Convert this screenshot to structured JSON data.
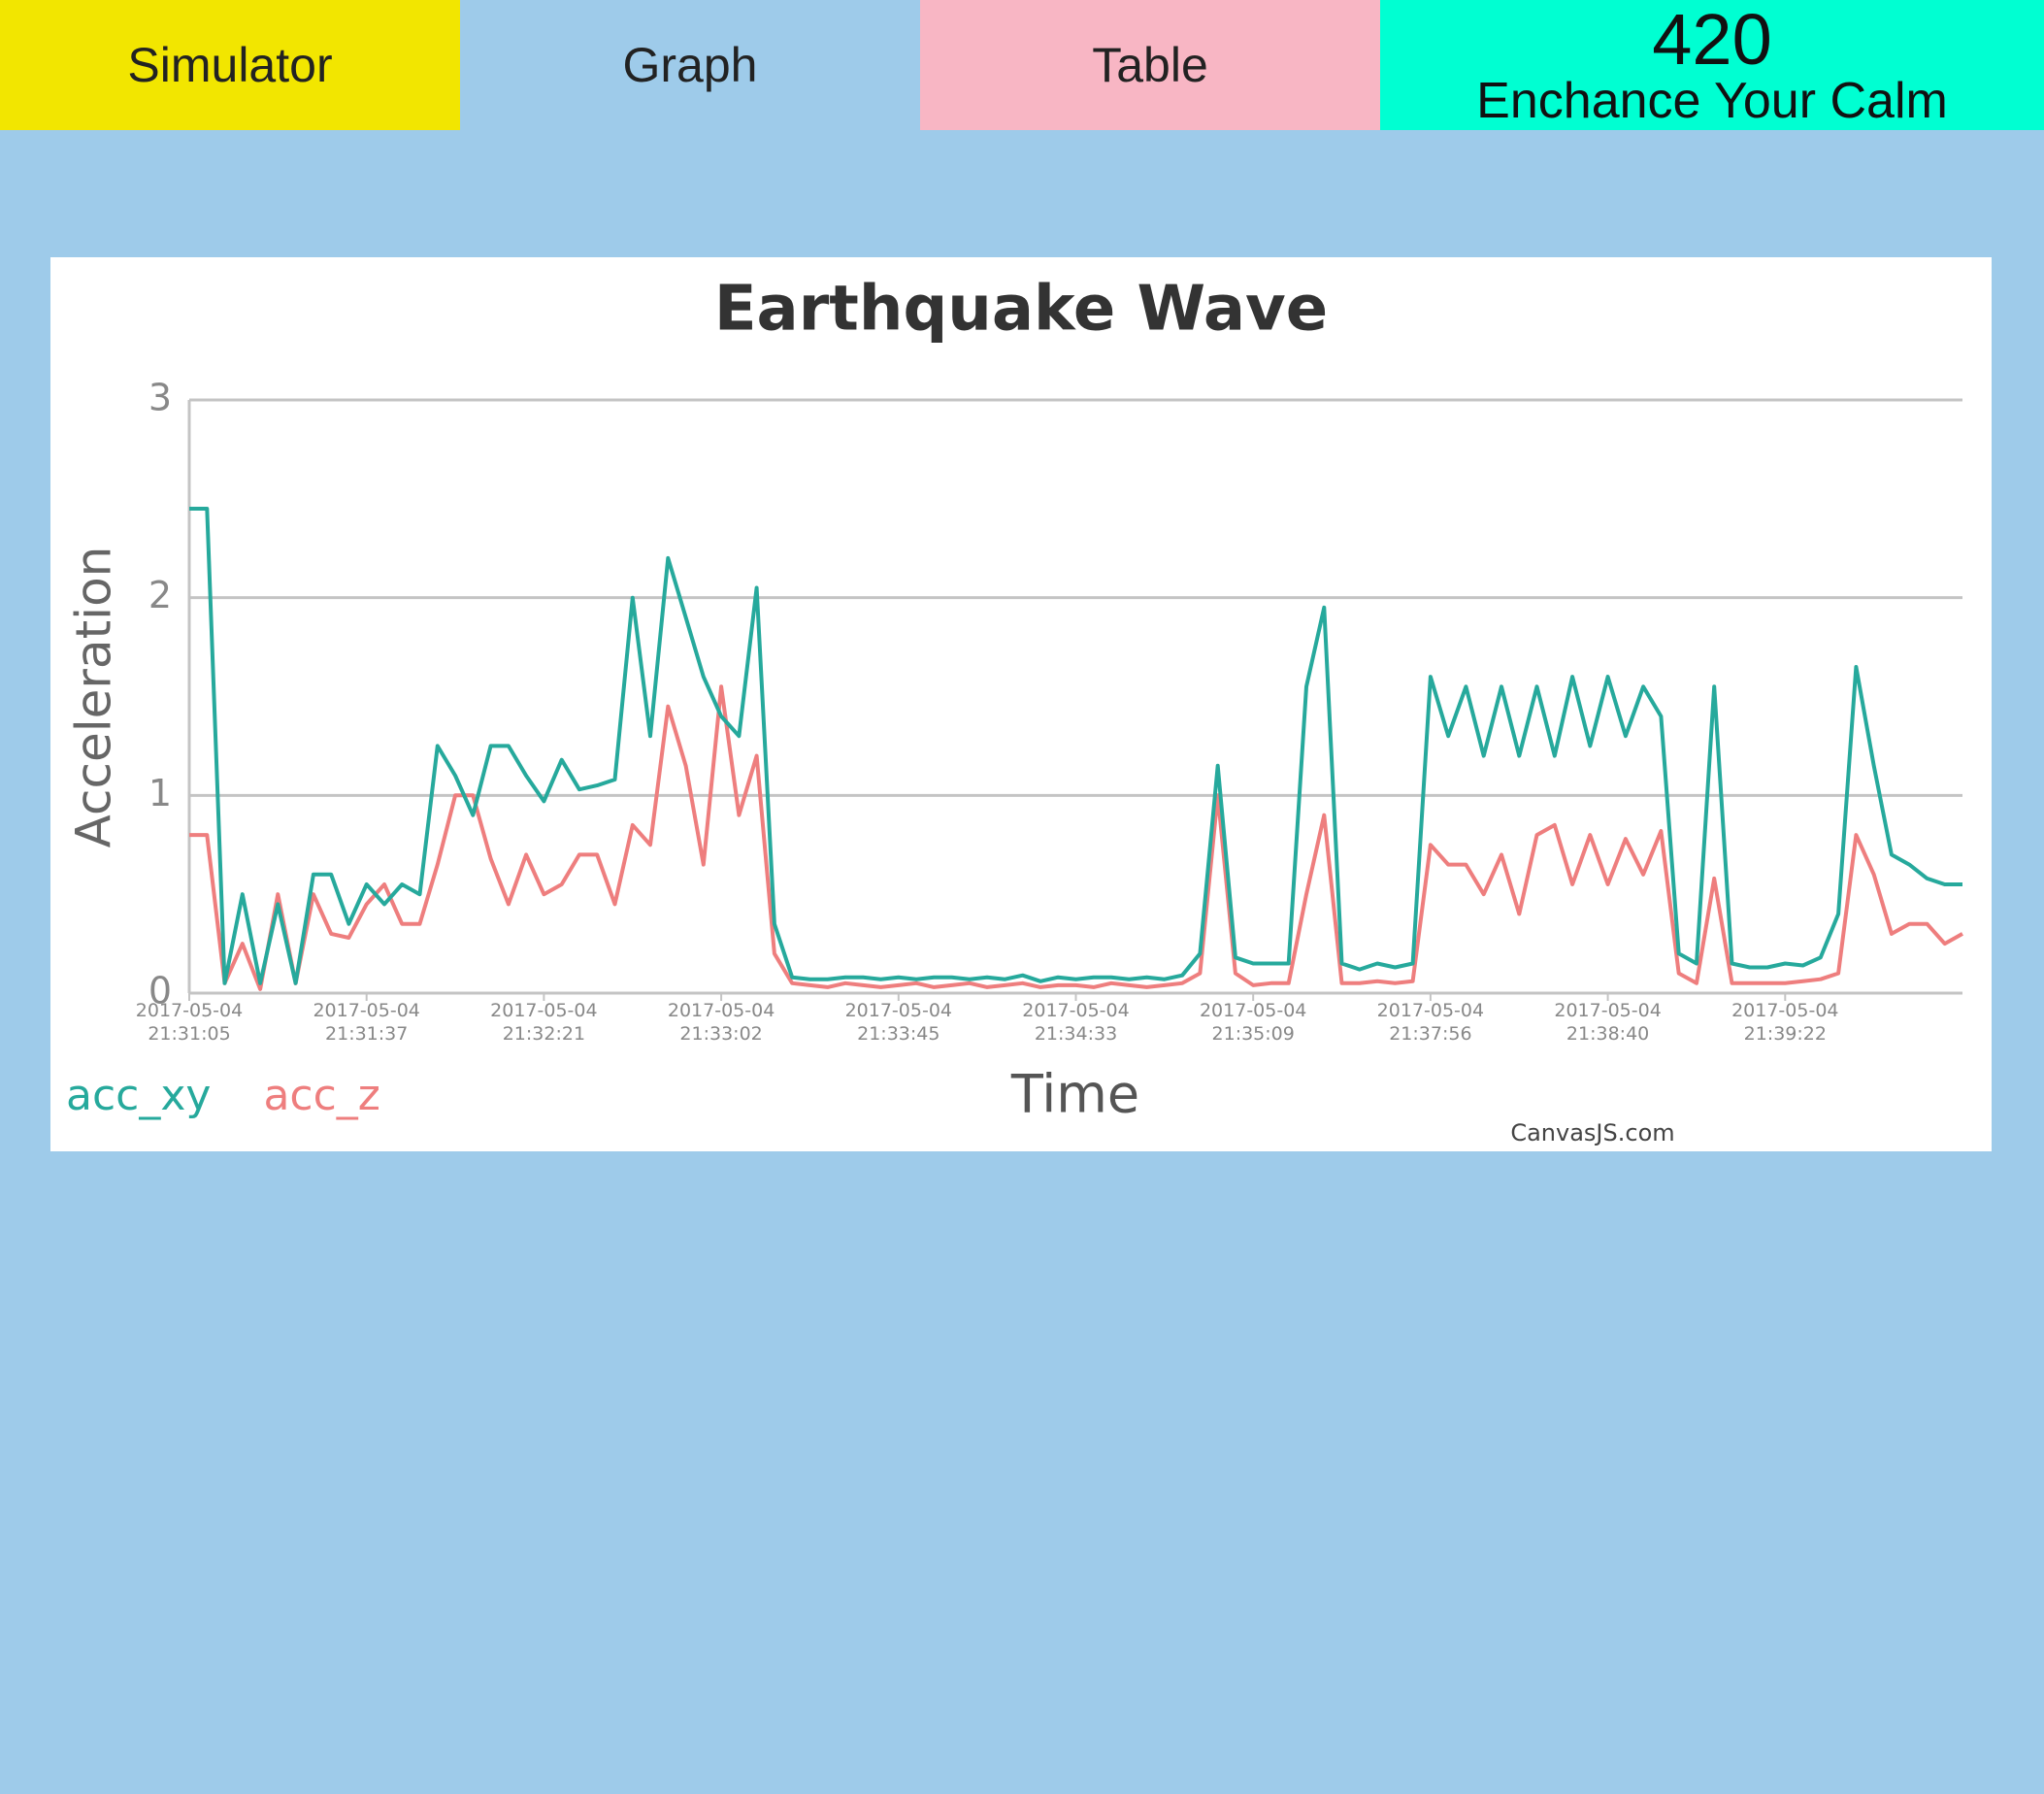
{
  "nav": {
    "tabs": [
      {
        "label": "Simulator",
        "color": "#f2e600"
      },
      {
        "label": "Graph",
        "color": "#9ecbea"
      },
      {
        "label": "Table",
        "color": "#f8b6c4"
      }
    ],
    "counter": {
      "value": 420,
      "label": "Enchance Your Calm",
      "color": "#00ffd2"
    }
  },
  "chart_data": {
    "type": "line",
    "title": "Earthquake Wave",
    "x_label": "Time",
    "y_label": "Acceleration",
    "credit": "CanvasJS.com",
    "ylim": [
      0,
      3
    ],
    "yticks": [
      0,
      1,
      2,
      3
    ],
    "grid": true,
    "legend": "bottom-left",
    "categories": [
      "2017-05-04\n21:31:05",
      null,
      null,
      null,
      null,
      null,
      null,
      null,
      null,
      null,
      "2017-05-04\n21:31:37",
      null,
      null,
      null,
      null,
      null,
      null,
      null,
      null,
      null,
      "2017-05-04\n21:32:21",
      null,
      null,
      null,
      null,
      null,
      null,
      null,
      null,
      null,
      "2017-05-04\n21:33:02",
      null,
      null,
      null,
      null,
      null,
      null,
      null,
      null,
      null,
      "2017-05-04\n21:33:45",
      null,
      null,
      null,
      null,
      null,
      null,
      null,
      null,
      null,
      "2017-05-04\n21:34:33",
      null,
      null,
      null,
      null,
      null,
      null,
      null,
      null,
      null,
      "2017-05-04\n21:35:09",
      null,
      null,
      null,
      null,
      null,
      null,
      null,
      null,
      null,
      "2017-05-04\n21:37:56",
      null,
      null,
      null,
      null,
      null,
      null,
      null,
      null,
      null,
      "2017-05-04\n21:38:40",
      null,
      null,
      null,
      null,
      null,
      null,
      null,
      null,
      null,
      "2017-05-04\n21:39:22",
      null,
      null,
      null,
      null,
      null,
      null,
      null,
      null,
      null,
      null
    ],
    "series": [
      {
        "name": "acc_xy",
        "color": "#26a99c",
        "values": [
          2.45,
          2.45,
          0.05,
          0.5,
          0.05,
          0.45,
          0.05,
          0.6,
          0.6,
          0.35,
          0.55,
          0.45,
          0.55,
          0.5,
          1.25,
          1.1,
          0.9,
          1.25,
          1.25,
          1.1,
          0.97,
          1.18,
          1.03,
          1.05,
          1.08,
          2.0,
          1.3,
          2.2,
          1.9,
          1.6,
          1.4,
          1.3,
          2.05,
          0.35,
          0.08,
          0.07,
          0.07,
          0.08,
          0.08,
          0.07,
          0.08,
          0.07,
          0.08,
          0.08,
          0.07,
          0.08,
          0.07,
          0.09,
          0.06,
          0.08,
          0.07,
          0.08,
          0.08,
          0.07,
          0.08,
          0.07,
          0.09,
          0.2,
          1.15,
          0.18,
          0.15,
          0.15,
          0.15,
          1.55,
          1.95,
          0.15,
          0.12,
          0.15,
          0.13,
          0.15,
          1.6,
          1.3,
          1.55,
          1.2,
          1.55,
          1.2,
          1.55,
          1.2,
          1.6,
          1.25,
          1.6,
          1.3,
          1.55,
          1.4,
          0.2,
          0.15,
          1.55,
          0.15,
          0.13,
          0.13,
          0.15,
          0.14,
          0.18,
          0.4,
          1.65,
          1.15,
          0.7,
          0.65,
          0.58,
          0.55,
          0.55
        ]
      },
      {
        "name": "acc_z",
        "color": "#ee7e7e",
        "values": [
          0.8,
          0.8,
          0.05,
          0.25,
          0.02,
          0.5,
          0.05,
          0.5,
          0.3,
          0.28,
          0.45,
          0.55,
          0.35,
          0.35,
          0.65,
          1.0,
          1.0,
          0.68,
          0.45,
          0.7,
          0.5,
          0.55,
          0.7,
          0.7,
          0.45,
          0.85,
          0.75,
          1.45,
          1.15,
          0.65,
          1.55,
          0.9,
          1.2,
          0.2,
          0.05,
          0.04,
          0.03,
          0.05,
          0.04,
          0.03,
          0.04,
          0.05,
          0.03,
          0.04,
          0.05,
          0.03,
          0.04,
          0.05,
          0.03,
          0.04,
          0.04,
          0.03,
          0.05,
          0.04,
          0.03,
          0.04,
          0.05,
          0.1,
          1.0,
          0.1,
          0.04,
          0.05,
          0.05,
          0.5,
          0.9,
          0.05,
          0.05,
          0.06,
          0.05,
          0.06,
          0.75,
          0.65,
          0.65,
          0.5,
          0.7,
          0.4,
          0.8,
          0.85,
          0.55,
          0.8,
          0.55,
          0.78,
          0.6,
          0.82,
          0.1,
          0.05,
          0.58,
          0.05,
          0.05,
          0.05,
          0.05,
          0.06,
          0.07,
          0.1,
          0.8,
          0.6,
          0.3,
          0.35,
          0.35,
          0.25,
          0.3
        ]
      }
    ]
  }
}
